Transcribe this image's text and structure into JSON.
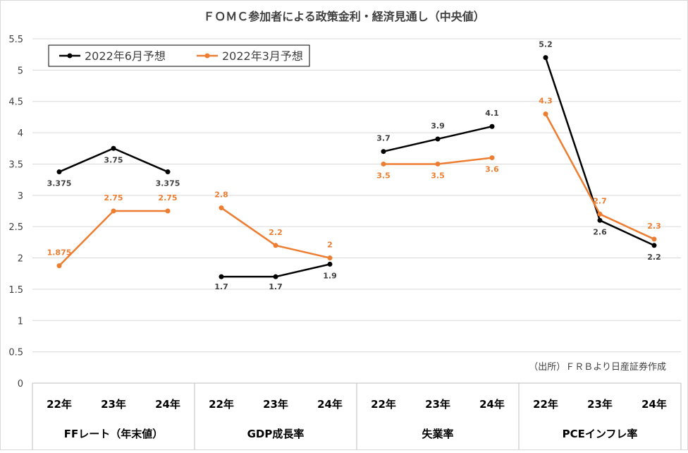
{
  "chart_data": {
    "type": "line",
    "title": "ＦＯＭＣ参加者による政策金利・経済見通し（中央値）",
    "source_note": "（出所）ＦＲＢより日産証券作成",
    "yticks": [
      "0",
      "0.5",
      "1",
      "1.5",
      "2",
      "2.5",
      "3",
      "3.5",
      "4",
      "4.5",
      "5",
      "5.5"
    ],
    "ylim": [
      0,
      5.5
    ],
    "grid": true,
    "legend_position": "top-left",
    "groups": [
      {
        "label": "FFレート（年末値）",
        "categories": [
          "22年",
          "23年",
          "24年"
        ]
      },
      {
        "label": "GDP成長率",
        "categories": [
          "22年",
          "23年",
          "24年"
        ]
      },
      {
        "label": "失業率",
        "categories": [
          "22年",
          "23年",
          "24年"
        ]
      },
      {
        "label": "PCEインフレ率",
        "categories": [
          "22年",
          "23年",
          "24年"
        ]
      }
    ],
    "series": [
      {
        "name": "2022年6月予想",
        "color": "#000000",
        "values": [
          [
            3.375,
            3.75,
            3.375
          ],
          [
            1.7,
            1.7,
            1.9
          ],
          [
            3.7,
            3.9,
            4.1
          ],
          [
            5.2,
            2.6,
            2.2
          ]
        ],
        "labels": [
          [
            "3.375",
            "3.75",
            "3.375"
          ],
          [
            "1.7",
            "1.7",
            "1.9"
          ],
          [
            "3.7",
            "3.9",
            "4.1"
          ],
          [
            "5.2",
            "2.6",
            "2.2"
          ]
        ]
      },
      {
        "name": "2022年3月予想",
        "color": "#ED7D31",
        "values": [
          [
            1.875,
            2.75,
            2.75
          ],
          [
            2.8,
            2.2,
            2.0
          ],
          [
            3.5,
            3.5,
            3.6
          ],
          [
            4.3,
            2.7,
            2.3
          ]
        ],
        "labels": [
          [
            "1.875",
            "2.75",
            "2.75"
          ],
          [
            "2.8",
            "2.2",
            "2"
          ],
          [
            "3.5",
            "3.5",
            "3.6"
          ],
          [
            "4.3",
            "2.7",
            "2.3"
          ]
        ]
      }
    ]
  }
}
